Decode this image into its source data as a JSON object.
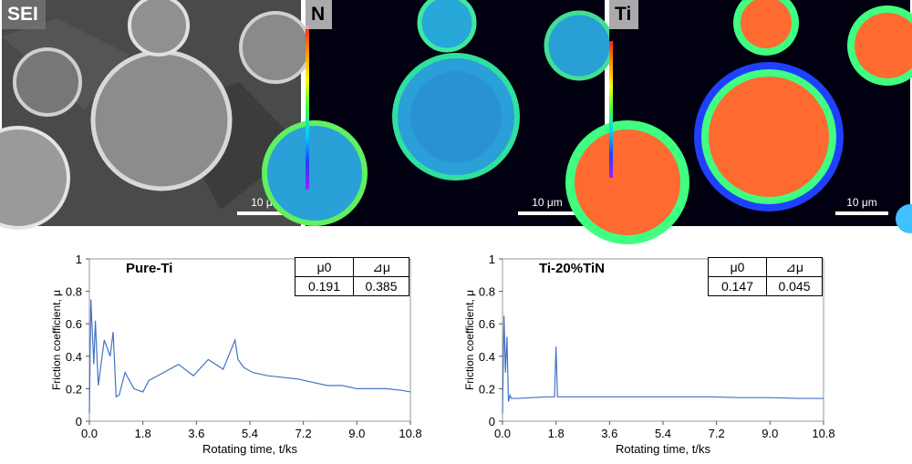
{
  "micrographs": [
    {
      "label": "SEI",
      "scale": "10 μm",
      "colormap": "grayscale"
    },
    {
      "label": "N",
      "scale": "10 μm",
      "colormap": "jet"
    },
    {
      "label": "Ti",
      "scale": "10 μm",
      "colormap": "jet"
    }
  ],
  "chart_data": [
    {
      "type": "line",
      "title": "Pure-Ti",
      "xlabel": "Rotating time, t/ks",
      "ylabel": "Friction coefficient, μ",
      "xlim": [
        0,
        10.8
      ],
      "ylim": [
        0,
        1
      ],
      "xticks": [
        "0.0",
        "1.8",
        "3.6",
        "5.4",
        "7.2",
        "9.0",
        "10.8"
      ],
      "yticks": [
        "0",
        "0.2",
        "0.4",
        "0.6",
        "0.8",
        "1"
      ],
      "color": "#4472c4",
      "table": {
        "headers": [
          "μ0",
          "⊿μ"
        ],
        "values": [
          "0.191",
          "0.385"
        ]
      },
      "series": [
        {
          "x": [
            0,
            0.05,
            0.1,
            0.15,
            0.2,
            0.3,
            0.5,
            0.7,
            0.8,
            0.9,
            1.0,
            1.2,
            1.5,
            1.8,
            2.0,
            2.5,
            3.0,
            3.5,
            4.0,
            4.5,
            4.9,
            5.0,
            5.2,
            5.5,
            6.0,
            6.5,
            7.0,
            7.5,
            8.0,
            8.5,
            9.0,
            9.5,
            10.0,
            10.5,
            10.8
          ],
          "y": [
            0.05,
            0.75,
            0.55,
            0.35,
            0.62,
            0.22,
            0.5,
            0.4,
            0.55,
            0.15,
            0.16,
            0.3,
            0.2,
            0.18,
            0.25,
            0.3,
            0.35,
            0.28,
            0.38,
            0.32,
            0.5,
            0.38,
            0.33,
            0.3,
            0.28,
            0.27,
            0.26,
            0.24,
            0.22,
            0.22,
            0.2,
            0.2,
            0.2,
            0.19,
            0.18
          ]
        }
      ]
    },
    {
      "type": "line",
      "title": "Ti-20%TiN",
      "xlabel": "Rotating time, t/ks",
      "ylabel": "Friction coefficient, μ",
      "xlim": [
        0,
        10.8
      ],
      "ylim": [
        0,
        1
      ],
      "xticks": [
        "0.0",
        "1.8",
        "3.6",
        "5.4",
        "7.2",
        "9.0",
        "10.8"
      ],
      "yticks": [
        "0",
        "0.2",
        "0.4",
        "0.6",
        "0.8",
        "1"
      ],
      "color": "#4472c4",
      "table": {
        "headers": [
          "μ0",
          "⊿μ"
        ],
        "values": [
          "0.147",
          "0.045"
        ]
      },
      "series": [
        {
          "x": [
            0,
            0.05,
            0.1,
            0.15,
            0.2,
            0.25,
            0.3,
            0.5,
            1.0,
            1.5,
            1.75,
            1.8,
            1.85,
            2.0,
            3.0,
            4.0,
            5.0,
            6.0,
            7.0,
            8.0,
            9.0,
            10.0,
            10.8
          ],
          "y": [
            0.05,
            0.65,
            0.3,
            0.52,
            0.12,
            0.16,
            0.14,
            0.14,
            0.145,
            0.15,
            0.15,
            0.46,
            0.15,
            0.15,
            0.15,
            0.15,
            0.15,
            0.15,
            0.15,
            0.145,
            0.145,
            0.14,
            0.14
          ]
        }
      ]
    }
  ]
}
